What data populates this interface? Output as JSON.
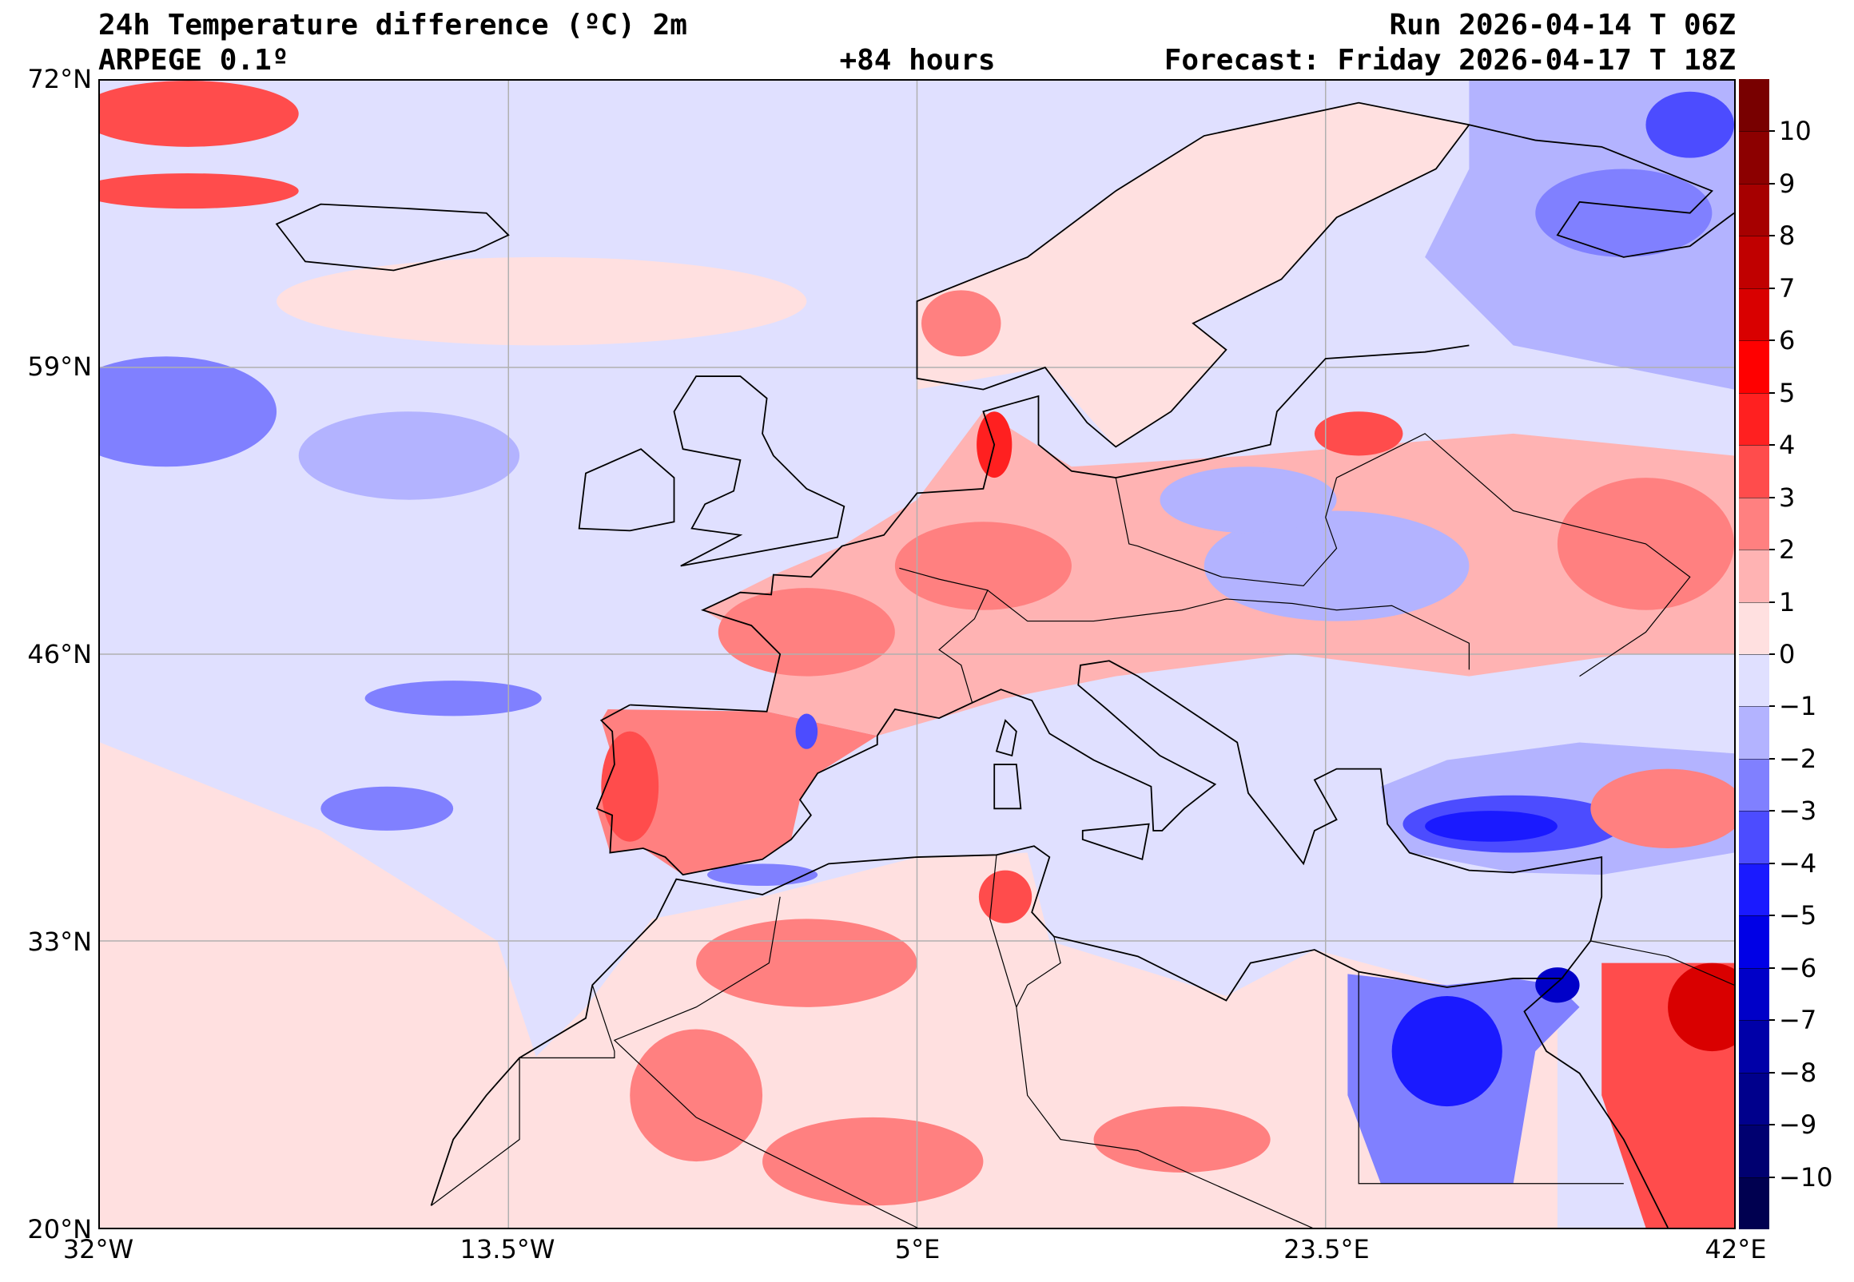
{
  "header": {
    "title": "24h Temperature difference (ºC) 2m",
    "model": "ARPEGE 0.1º",
    "lead_time": "+84 hours",
    "run": "Run 2026-04-14 T 06Z",
    "forecast": "Forecast: Friday 2026-04-17 T 18Z"
  },
  "axes": {
    "lat_labels": [
      "72°N",
      "59°N",
      "46°N",
      "33°N",
      "20°N"
    ],
    "lon_labels": [
      "32°W",
      "13.5°W",
      "5°E",
      "23.5°E",
      "42°E"
    ]
  },
  "colorbar": {
    "ticks": [
      "10",
      "9",
      "8",
      "7",
      "6",
      "5",
      "4",
      "3",
      "2",
      "1",
      "0",
      "−1",
      "−2",
      "−3",
      "−4",
      "−5",
      "−6",
      "−7",
      "−8",
      "−9",
      "−10"
    ],
    "colors": [
      "#780000",
      "#8c0000",
      "#a60000",
      "#c00000",
      "#d90000",
      "#ff0000",
      "#ff2020",
      "#ff4c4c",
      "#ff8080",
      "#ffb3b3",
      "#ffe0e0",
      "#e0e0ff",
      "#b3b3ff",
      "#8080ff",
      "#4c4cff",
      "#1a1aff",
      "#0000e6",
      "#0000c8",
      "#0000a8",
      "#00008c",
      "#000070",
      "#000050"
    ]
  }
}
